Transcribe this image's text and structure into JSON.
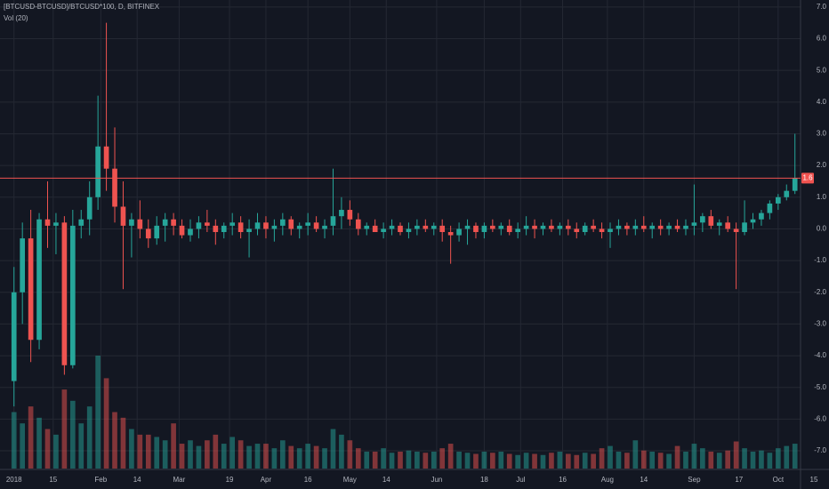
{
  "chart_data": {
    "type": "candlestick",
    "title": "[BTCUSD-BTCUSD]/BTCUSD*100, D, BITFINEX",
    "subtitle": "Vol (20)",
    "x": [
      0,
      3,
      6,
      9,
      12,
      15,
      18,
      21,
      24,
      27,
      30,
      33,
      36,
      39,
      42,
      45,
      48,
      51,
      54,
      57,
      60,
      63,
      66,
      69,
      72,
      75,
      78,
      81,
      84,
      87,
      90,
      93,
      96,
      99,
      102,
      105,
      108,
      111,
      114,
      117,
      120,
      123,
      126,
      129,
      132,
      135,
      138,
      141,
      144,
      147,
      150,
      153,
      156,
      159,
      162,
      165,
      168,
      171,
      174,
      177,
      180,
      183,
      186,
      189,
      192,
      195,
      198,
      201,
      204,
      207,
      210,
      213,
      216,
      219,
      222,
      225,
      228,
      231,
      234,
      237,
      240,
      243,
      246,
      249,
      252,
      255,
      258,
      261,
      264,
      267,
      270,
      273,
      276,
      279
    ],
    "open": [
      -4.8,
      -2.0,
      -0.3,
      -3.5,
      0.3,
      0.1,
      0.2,
      -4.3,
      0.1,
      0.3,
      1.0,
      2.6,
      1.9,
      0.7,
      0.1,
      0.3,
      0.0,
      -0.3,
      0.1,
      0.3,
      0.1,
      -0.2,
      0.0,
      0.2,
      0.1,
      -0.1,
      0.1,
      0.2,
      -0.1,
      0.0,
      0.2,
      0.0,
      0.1,
      0.3,
      0.0,
      0.1,
      0.2,
      0.0,
      0.1,
      0.4,
      0.6,
      0.3,
      0.0,
      0.1,
      -0.1,
      0.0,
      0.1,
      -0.1,
      0.0,
      0.1,
      0.0,
      0.1,
      -0.1,
      -0.2,
      0.0,
      0.1,
      -0.1,
      0.1,
      0.0,
      0.1,
      -0.1,
      0.0,
      0.1,
      0.0,
      0.1,
      0.0,
      0.1,
      0.0,
      -0.1,
      0.1,
      0.0,
      -0.1,
      0.0,
      0.1,
      0.0,
      0.1,
      0.0,
      0.1,
      0.0,
      0.1,
      0.0,
      0.1,
      0.2,
      0.4,
      0.1,
      0.2,
      0.0,
      -0.1,
      0.2,
      0.3,
      0.5,
      0.8,
      1.0,
      1.2
    ],
    "high": [
      -1.2,
      0.2,
      0.6,
      0.5,
      1.5,
      0.5,
      0.4,
      0.6,
      0.6,
      1.5,
      4.2,
      6.5,
      3.2,
      1.5,
      0.5,
      0.9,
      0.3,
      0.4,
      0.5,
      0.5,
      0.3,
      0.3,
      0.4,
      0.6,
      0.3,
      0.2,
      0.5,
      0.4,
      0.3,
      0.5,
      0.4,
      0.3,
      0.5,
      0.4,
      0.2,
      0.5,
      0.4,
      0.3,
      1.9,
      1.0,
      0.9,
      0.5,
      0.2,
      0.3,
      0.2,
      0.3,
      0.2,
      0.2,
      0.3,
      0.3,
      0.2,
      0.3,
      0.1,
      0.2,
      0.3,
      0.2,
      0.2,
      0.3,
      0.2,
      0.3,
      0.2,
      0.4,
      0.3,
      0.2,
      0.3,
      0.2,
      0.3,
      0.2,
      0.2,
      0.3,
      0.2,
      0.2,
      0.3,
      0.2,
      0.3,
      0.4,
      0.2,
      0.3,
      0.2,
      0.3,
      0.3,
      1.4,
      0.5,
      0.6,
      0.3,
      0.4,
      0.2,
      0.9,
      0.5,
      0.6,
      0.9,
      1.1,
      1.4,
      3.0
    ],
    "low": [
      -5.6,
      -3.0,
      -4.2,
      -3.8,
      -0.6,
      -0.8,
      -4.6,
      -4.4,
      -0.3,
      -0.2,
      0.6,
      1.2,
      0.2,
      -1.9,
      -0.9,
      -0.3,
      -0.6,
      -0.5,
      -0.4,
      -0.2,
      -0.3,
      -0.4,
      -0.3,
      -0.1,
      -0.5,
      -0.3,
      -0.2,
      -0.3,
      -0.9,
      -0.2,
      -0.3,
      -0.4,
      -0.2,
      -0.2,
      -0.3,
      -0.2,
      -0.1,
      -0.3,
      -0.2,
      0.0,
      0.1,
      -0.2,
      -0.2,
      -0.1,
      -0.3,
      -0.2,
      -0.2,
      -0.3,
      -0.2,
      -0.1,
      -0.2,
      -0.4,
      -1.1,
      -0.4,
      -0.5,
      -0.3,
      -0.3,
      -0.1,
      -0.2,
      -0.2,
      -0.3,
      -0.2,
      -0.3,
      -0.2,
      -0.1,
      -0.2,
      -0.2,
      -0.3,
      -0.2,
      -0.1,
      -0.3,
      -0.6,
      -0.2,
      -0.2,
      -0.2,
      -0.1,
      -0.3,
      -0.2,
      -0.2,
      -0.1,
      -0.2,
      -0.2,
      -0.1,
      0.0,
      -0.2,
      -0.1,
      -1.9,
      -0.2,
      0.0,
      0.1,
      0.3,
      0.6,
      0.9,
      1.1
    ],
    "close": [
      -2.0,
      -0.3,
      -3.5,
      0.3,
      0.1,
      0.2,
      -4.3,
      0.1,
      0.3,
      1.0,
      2.6,
      1.9,
      0.7,
      0.1,
      0.3,
      0.0,
      -0.3,
      0.1,
      0.3,
      0.1,
      -0.2,
      0.0,
      0.2,
      0.1,
      -0.1,
      0.1,
      0.2,
      -0.1,
      0.0,
      0.2,
      0.0,
      0.1,
      0.3,
      0.0,
      0.1,
      0.2,
      0.0,
      0.1,
      0.4,
      0.6,
      0.3,
      0.0,
      0.1,
      -0.1,
      0.0,
      0.1,
      -0.1,
      0.0,
      0.1,
      0.0,
      0.1,
      -0.1,
      -0.2,
      0.0,
      0.1,
      -0.1,
      0.1,
      0.0,
      0.1,
      -0.1,
      0.0,
      0.1,
      0.0,
      0.1,
      0.0,
      0.1,
      0.0,
      -0.1,
      0.1,
      0.0,
      -0.1,
      0.0,
      0.1,
      0.0,
      0.1,
      0.0,
      0.1,
      0.0,
      0.1,
      0.0,
      0.1,
      0.2,
      0.4,
      0.1,
      0.2,
      0.0,
      -0.1,
      0.2,
      0.3,
      0.5,
      0.8,
      1.0,
      1.2,
      1.6
    ],
    "volume": [
      50,
      40,
      55,
      45,
      35,
      30,
      70,
      60,
      40,
      55,
      100,
      80,
      50,
      45,
      35,
      30,
      30,
      28,
      25,
      40,
      22,
      25,
      20,
      25,
      30,
      22,
      28,
      25,
      20,
      22,
      22,
      18,
      25,
      20,
      18,
      22,
      20,
      18,
      35,
      30,
      25,
      18,
      15,
      15,
      18,
      14,
      15,
      16,
      15,
      14,
      15,
      18,
      22,
      15,
      14,
      13,
      15,
      14,
      15,
      13,
      12,
      14,
      13,
      12,
      14,
      15,
      13,
      12,
      14,
      13,
      18,
      20,
      15,
      14,
      25,
      16,
      15,
      14,
      13,
      20,
      15,
      22,
      18,
      15,
      14,
      16,
      24,
      18,
      15,
      16,
      14,
      18,
      20,
      22
    ],
    "up_color": "#26a69a",
    "down_color": "#ef5350",
    "xlim": [
      -5,
      281
    ],
    "xticks": [
      {
        "value": 0,
        "label": "2018"
      },
      {
        "value": 14,
        "label": "15"
      },
      {
        "value": 31,
        "label": "Feb"
      },
      {
        "value": 44,
        "label": "14"
      },
      {
        "value": 59,
        "label": "Mar"
      },
      {
        "value": 77,
        "label": "19"
      },
      {
        "value": 90,
        "label": "Apr"
      },
      {
        "value": 105,
        "label": "16"
      },
      {
        "value": 120,
        "label": "May"
      },
      {
        "value": 133,
        "label": "14"
      },
      {
        "value": 151,
        "label": "Jun"
      },
      {
        "value": 168,
        "label": "18"
      },
      {
        "value": 181,
        "label": "Jul"
      },
      {
        "value": 196,
        "label": "16"
      },
      {
        "value": 212,
        "label": "Aug"
      },
      {
        "value": 225,
        "label": "14"
      },
      {
        "value": 243,
        "label": "Sep"
      },
      {
        "value": 259,
        "label": "17"
      },
      {
        "value": 273,
        "label": "Oct"
      },
      {
        "value": 287,
        "label": "15"
      }
    ],
    "ylim": [
      -7.56,
      7.22
    ],
    "yticks": [
      {
        "value": 7,
        "label": "7.0"
      },
      {
        "value": 6,
        "label": "6.0"
      },
      {
        "value": 5,
        "label": "5.0"
      },
      {
        "value": 4,
        "label": "4.0"
      },
      {
        "value": 3,
        "label": "3.0"
      },
      {
        "value": 2,
        "label": "2.0"
      },
      {
        "value": 1,
        "label": "1.0"
      },
      {
        "value": 0,
        "label": "0.0"
      },
      {
        "value": -1,
        "label": "-1.0"
      },
      {
        "value": -2,
        "label": "-2.0"
      },
      {
        "value": -3,
        "label": "-3.0"
      },
      {
        "value": -4,
        "label": "-4.0"
      },
      {
        "value": -5,
        "label": "-5.0"
      },
      {
        "value": -6,
        "label": "-6.0"
      },
      {
        "value": -7,
        "label": "-7.0"
      }
    ],
    "vlim": [
      0,
      100
    ],
    "last_price": {
      "value": 1.6,
      "label": "1.6",
      "color": "#ef5350"
    },
    "grid": true
  }
}
